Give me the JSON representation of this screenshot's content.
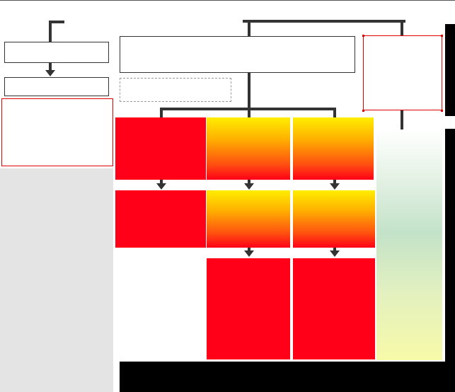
{
  "diagram": {
    "colors": {
      "connector": "#333333",
      "red_fill": "#ff0018",
      "gradient_top": "#ffee00",
      "gradient_bottom": "#ff0018",
      "outline_red": "#e00000",
      "gray_panel": "#e4e4e4",
      "green_panel": "#c3e2c8",
      "black_bar": "#000000"
    },
    "nodes": {
      "left_top_box": "",
      "left_second_box": "",
      "left_red_outline_box": "",
      "main_box": "",
      "dashed_box": "",
      "right_red_outline_box": "",
      "red_box_1": "",
      "gradient_box_1": "",
      "gradient_box_2": "",
      "red_box_2": "",
      "gradient_box_3": "",
      "gradient_box_4": "",
      "red_box_3": "",
      "red_box_4": ""
    }
  }
}
